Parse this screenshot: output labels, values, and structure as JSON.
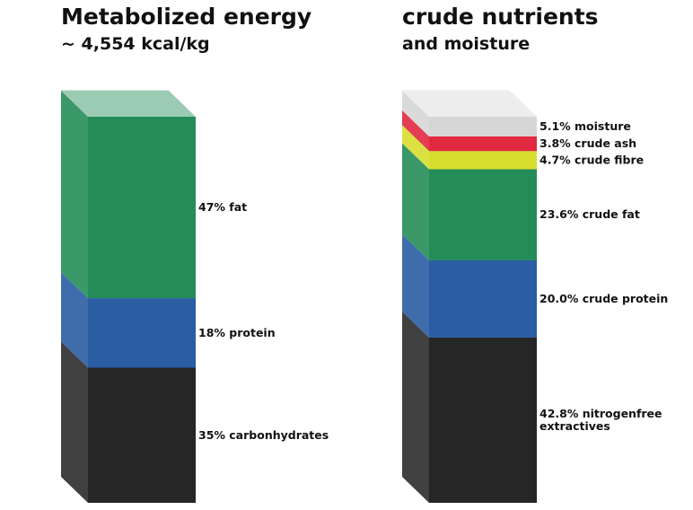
{
  "chart_data": [
    {
      "type": "stacked-bar-3d",
      "title": "Metabolized energy",
      "subtitle": "~ 4,554 kcal/kg",
      "unit": "%",
      "segments": [
        {
          "label": "35% carbonhydrates",
          "value": 35,
          "color": "#262626"
        },
        {
          "label": "18% protein",
          "value": 18,
          "color": "#2a5da2"
        },
        {
          "label": "47% fat",
          "value": 47,
          "color": "#248c58"
        }
      ]
    },
    {
      "type": "stacked-bar-3d",
      "title": "crude nutrients",
      "subtitle": "and moisture",
      "unit": "%",
      "segments": [
        {
          "label": "42.8% nitrogenfree extractives",
          "label_lines": [
            "42.8% nitrogenfree",
            "extractives"
          ],
          "value": 42.8,
          "color": "#262626"
        },
        {
          "label": "20.0% crude protein",
          "value": 20.0,
          "color": "#2a5da2"
        },
        {
          "label": "23.6% crude fat",
          "value": 23.6,
          "color": "#248c58"
        },
        {
          "label": "4.7% crude fibre",
          "value": 4.7,
          "color": "#d7de2e"
        },
        {
          "label": "3.8% crude ash",
          "value": 3.8,
          "color": "#e1293f"
        },
        {
          "label": "5.1% moisture",
          "value": 5.1,
          "color": "#d6d6d6"
        }
      ]
    }
  ]
}
